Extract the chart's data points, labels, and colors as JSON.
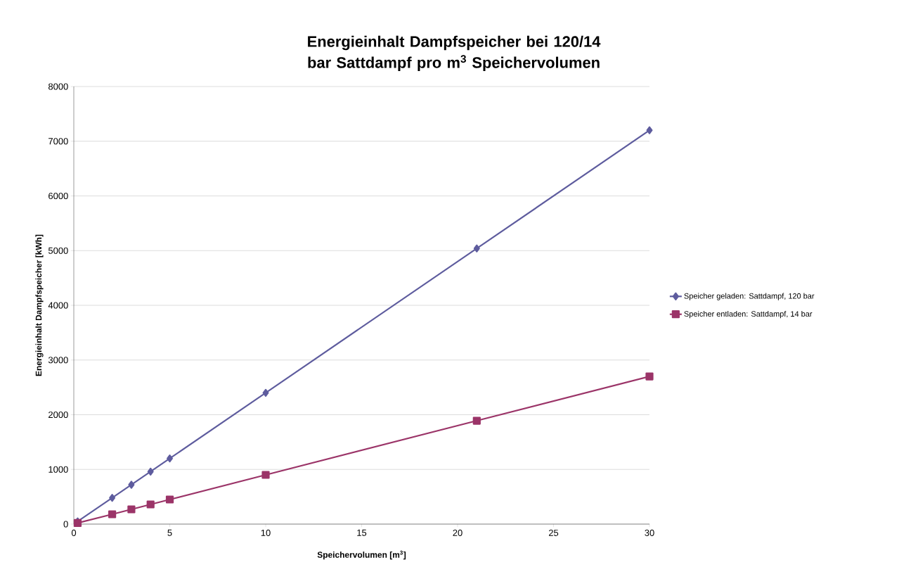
{
  "chart_data": {
    "type": "line",
    "title": "Energieinhalt Dampfspeicher bei 120/14 bar Sattdampf pro m$^{3}$ Speichervolumen",
    "xlabel": "Speichervolumen [m$^{3}$]",
    "ylabel": "Energieinhalt Dampfspeicher [kWh]",
    "x": [
      0.2,
      2,
      3,
      4,
      5,
      10,
      21,
      30
    ],
    "series": [
      {
        "name": "Speicher geladen: Sattdampf, 120 bar",
        "color": "#5e5c9e",
        "marker": "diamond",
        "values": [
          50,
          480,
          720,
          960,
          1200,
          2400,
          5040,
          7200
        ]
      },
      {
        "name": "Speicher entladen: Sattdampf, 14 bar",
        "color": "#9b3468",
        "marker": "square",
        "values": [
          20,
          180,
          270,
          360,
          450,
          900,
          1890,
          2700
        ]
      }
    ],
    "xlim": [
      0,
      30
    ],
    "xticks": [
      0,
      5,
      10,
      15,
      20,
      25,
      30
    ],
    "ylim": [
      0,
      8000
    ],
    "yticks": [
      0,
      1000,
      2000,
      3000,
      4000,
      5000,
      6000,
      7000,
      8000
    ],
    "grid": "y",
    "legend": "right"
  }
}
